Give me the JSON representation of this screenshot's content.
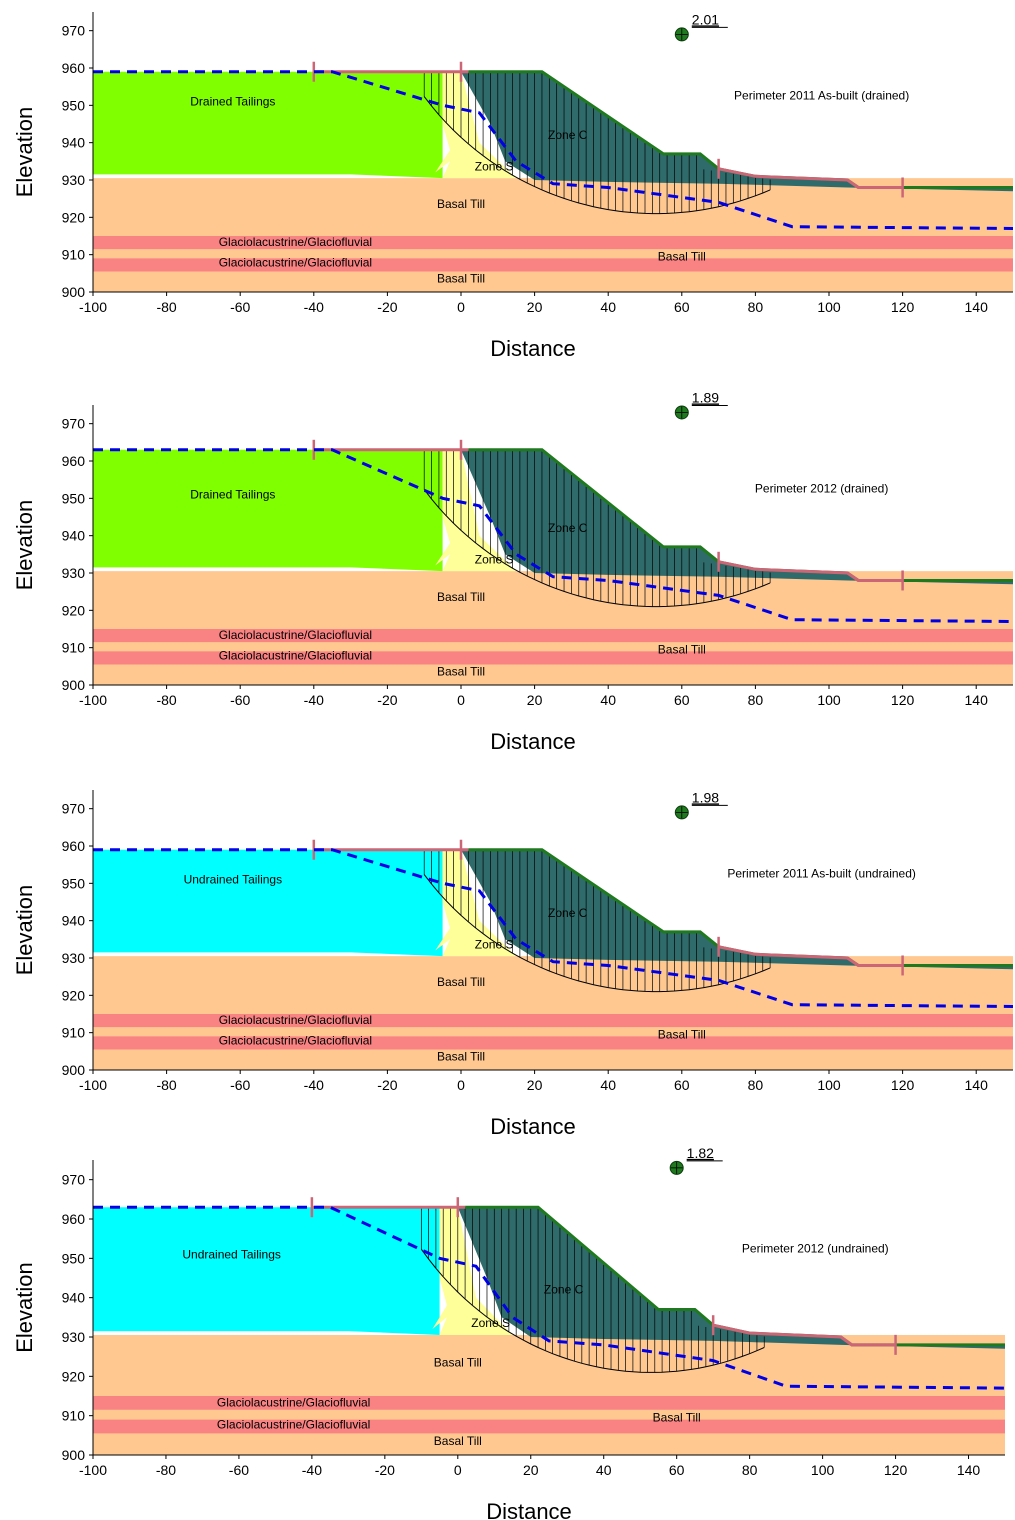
{
  "colors": {
    "tailings_drained": "#80ff00",
    "tailings_undrained": "#00ffff",
    "zone_c": "#2f6b6b",
    "zone_s": "#ffff99",
    "basal_till": "#ffc891",
    "glacio": "#f98282",
    "crest_line": "#1f7a1f",
    "water": "#0000e6",
    "pink_line": "#cc6677",
    "fos_marker": "#1f7a1f"
  },
  "panels": [
    {
      "caption": "Perimeter 2011 As-built (drained)",
      "fos": "2.01",
      "tailings_label": "Drained Tailings",
      "tailings_type": "drained",
      "xlabel": "Distance",
      "ylabel": "Elevation",
      "xticks": [
        "-100",
        "-80",
        "-60",
        "-40",
        "-20",
        "0",
        "20",
        "40",
        "60",
        "80",
        "100",
        "120",
        "140"
      ],
      "yticks": [
        "900",
        "910",
        "920",
        "930",
        "940",
        "950",
        "960",
        "970"
      ],
      "zone_c_label": "Zone C",
      "zone_s_label": "Zone S",
      "basal_till_upper": "Basal Till",
      "basal_till_right": "Basal Till",
      "basal_till_lower": "Basal Till",
      "glacio_1": "Glaciolacustrine/Glaciofluvial",
      "glacio_2": "Glaciolacustrine/Glaciofluvial",
      "xlim": [
        -100,
        150
      ],
      "ylim": [
        900,
        975
      ],
      "crest_elev": 959,
      "slip_x1": -40,
      "slip_x2": 120
    },
    {
      "caption": "Perimeter 2012 (drained)",
      "fos": "1.89",
      "tailings_label": "Drained Tailings",
      "tailings_type": "drained",
      "xlabel": "Distance",
      "ylabel": "Elevation",
      "xticks": [
        "-100",
        "-80",
        "-60",
        "-40",
        "-20",
        "0",
        "20",
        "40",
        "60",
        "80",
        "100",
        "120",
        "140"
      ],
      "yticks": [
        "900",
        "910",
        "920",
        "930",
        "940",
        "950",
        "960",
        "970"
      ],
      "zone_c_label": "Zone C",
      "zone_s_label": "Zone S",
      "basal_till_upper": "Basal Till",
      "basal_till_right": "Basal Till",
      "basal_till_lower": "Basal Till",
      "glacio_1": "Glaciolacustrine/Glaciofluvial",
      "glacio_2": "Glaciolacustrine/Glaciofluvial",
      "xlim": [
        -100,
        150
      ],
      "ylim": [
        900,
        975
      ],
      "crest_elev": 963,
      "slip_x1": -40,
      "slip_x2": 120
    },
    {
      "caption": "Perimeter 2011 As-built (undrained)",
      "fos": "1.98",
      "tailings_label": "Undrained Tailings",
      "tailings_type": "undrained",
      "xlabel": "Distance",
      "ylabel": "Elevation",
      "xticks": [
        "-100",
        "-80",
        "-60",
        "-40",
        "-20",
        "0",
        "20",
        "40",
        "60",
        "80",
        "100",
        "120",
        "140"
      ],
      "yticks": [
        "900",
        "910",
        "920",
        "930",
        "940",
        "950",
        "960",
        "970"
      ],
      "zone_c_label": "Zone C",
      "zone_s_label": "Zone S",
      "basal_till_upper": "Basal Till",
      "basal_till_right": "Basal Till",
      "basal_till_lower": "Basal Till",
      "glacio_1": "Glaciolacustrine/Glaciofluvial",
      "glacio_2": "Glaciolacustrine/Glaciofluvial",
      "xlim": [
        -100,
        150
      ],
      "ylim": [
        900,
        975
      ],
      "crest_elev": 959,
      "slip_x1": -40,
      "slip_x2": 120
    },
    {
      "caption": "Perimeter 2012 (undrained)",
      "fos": "1.82",
      "tailings_label": "Undrained Tailings",
      "tailings_type": "undrained",
      "xlabel": "Distance",
      "ylabel": "Elevation",
      "xticks": [
        "-100",
        "-80",
        "-60",
        "-40",
        "-20",
        "0",
        "20",
        "40",
        "60",
        "80",
        "100",
        "120",
        "140"
      ],
      "yticks": [
        "900",
        "910",
        "920",
        "930",
        "940",
        "950",
        "960",
        "970"
      ],
      "zone_c_label": "Zone C",
      "zone_s_label": "Zone S",
      "basal_till_upper": "Basal Till",
      "basal_till_right": "Basal Till",
      "basal_till_lower": "Basal Till",
      "glacio_1": "Glaciolacustrine/Glaciofluvial",
      "glacio_2": "Glaciolacustrine/Glaciofluvial",
      "xlim": [
        -100,
        150
      ],
      "ylim": [
        900,
        975
      ],
      "crest_elev": 963,
      "slip_x1": -40,
      "slip_x2": 120
    }
  ]
}
